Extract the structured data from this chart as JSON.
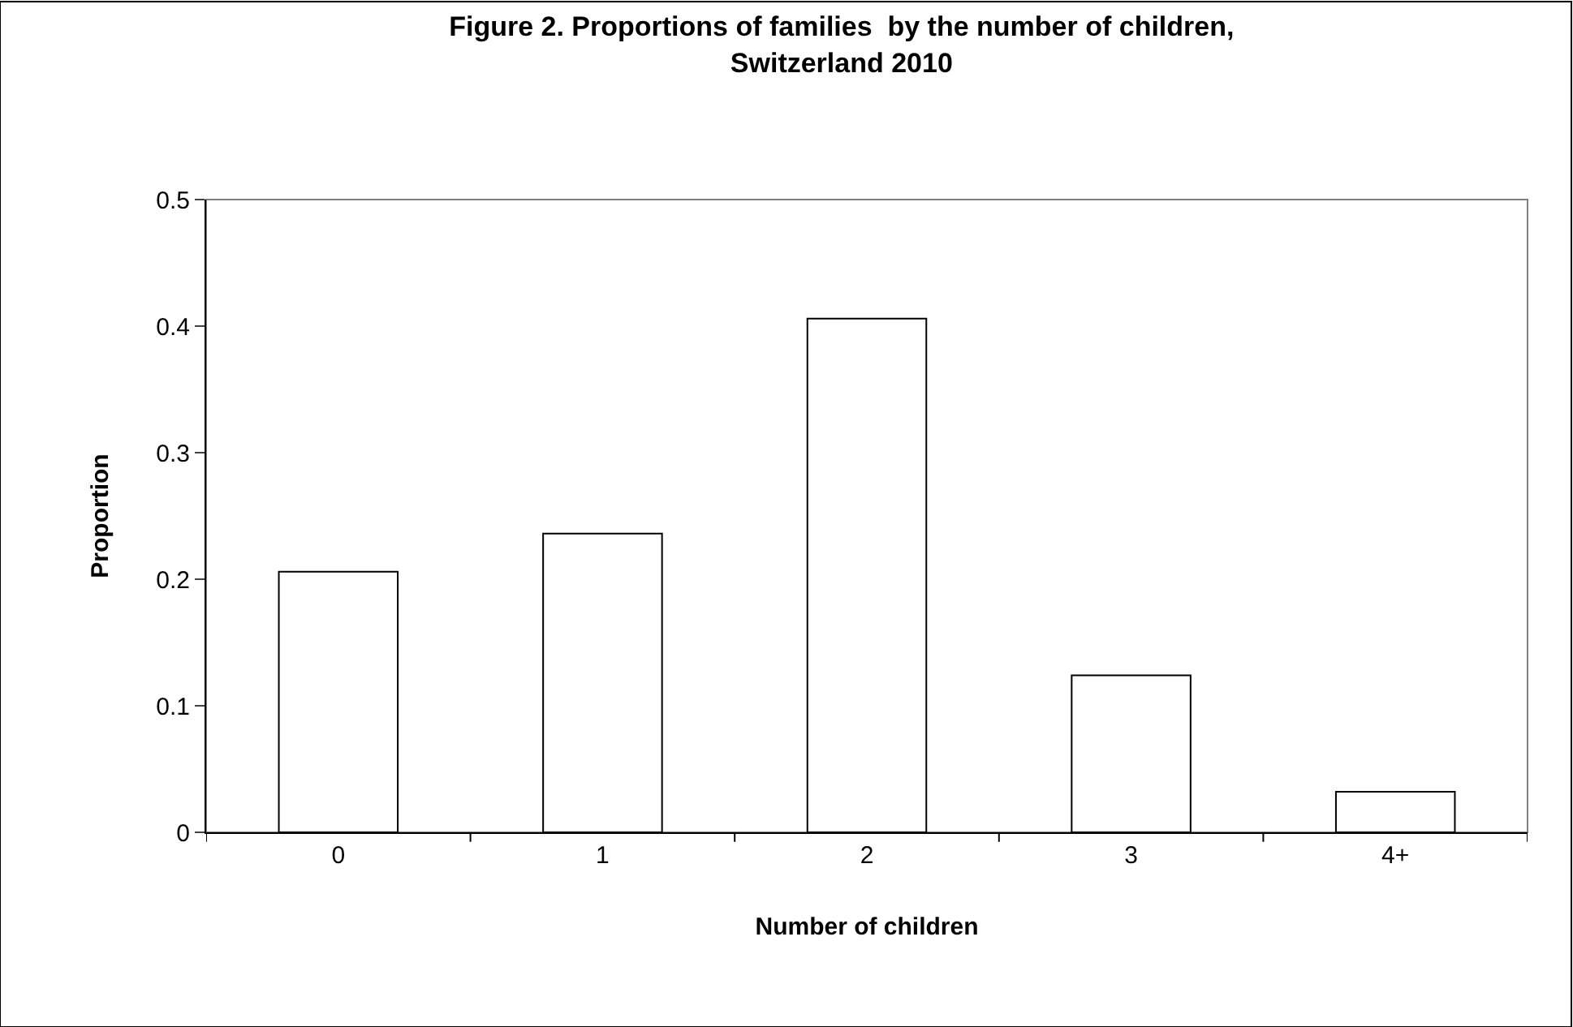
{
  "chart_data": {
    "type": "bar",
    "title": "Figure 2. Proportions of families  by the number of children,\nSwitzerland 2010",
    "xlabel": "Number of children",
    "ylabel": "Proportion",
    "categories": [
      "0",
      "1",
      "2",
      "3",
      "4+"
    ],
    "series": [
      {
        "color": "#ffffff",
        "values": [
          0.206,
          0.236,
          0.406,
          0.124,
          0.032
        ]
      }
    ],
    "ylim": [
      0,
      0.5
    ],
    "yticks": [
      0,
      0.1,
      0.2,
      0.3,
      0.4,
      0.5
    ],
    "grid": false,
    "legend": false
  }
}
